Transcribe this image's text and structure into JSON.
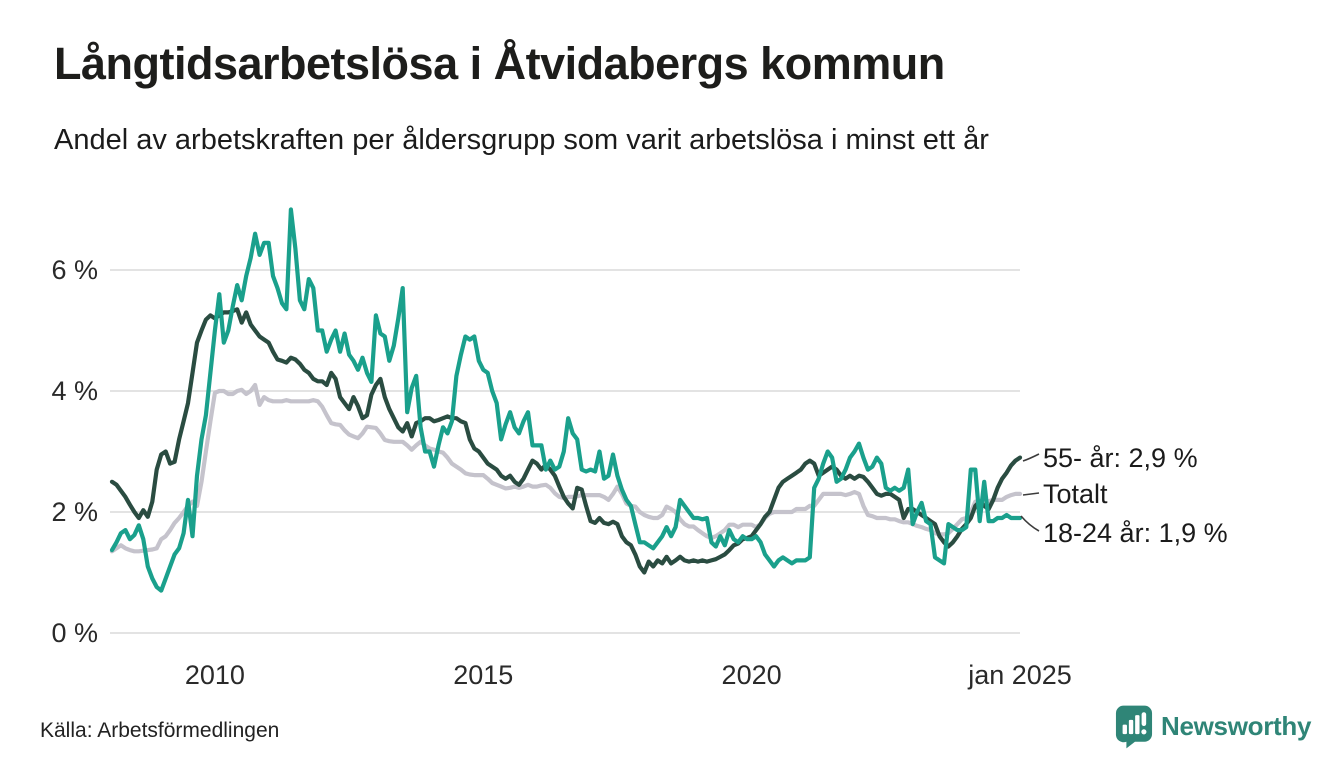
{
  "header": {
    "title": "Långtidsarbetslösa i Åtvidabergs kommun",
    "subtitle": "Andel av arbetskraften per åldersgrupp som varit arbetslösa i minst ett år"
  },
  "footer": {
    "source": "Källa: Arbetsförmedlingen",
    "logo_text": "Newsworthy",
    "logo_color": "#2F8577"
  },
  "chart_data": {
    "type": "line",
    "title": "Långtidsarbetslösa i Åtvidabergs kommun",
    "subtitle": "Andel av arbetskraften per åldersgrupp som varit arbetslösa i minst ett år",
    "unit": "% av arbetskraften",
    "frequency": "monthly",
    "x_start": "2008-02",
    "x_end": "2025-01",
    "ylim": [
      0,
      7.3
    ],
    "grid": "horizontal",
    "grid_color": "#e3e3e3",
    "y_ticks": [
      {
        "value": 0,
        "label": "0 %"
      },
      {
        "value": 2,
        "label": "2 %"
      },
      {
        "value": 4,
        "label": "4 %"
      },
      {
        "value": 6,
        "label": "6 %"
      }
    ],
    "x_ticks": [
      {
        "month_index": 23,
        "label": "2010"
      },
      {
        "month_index": 83,
        "label": "2015"
      },
      {
        "month_index": 143,
        "label": "2020"
      },
      {
        "month_index": 203,
        "label": "jan 2025"
      }
    ],
    "series": [
      {
        "name": "Totalt",
        "color": "#C5C3CC",
        "end_label": "Totalt",
        "end_value": 2.3,
        "values": [
          1.35,
          1.4,
          1.45,
          1.4,
          1.37,
          1.35,
          1.35,
          1.36,
          1.37,
          1.38,
          1.4,
          1.55,
          1.6,
          1.7,
          1.82,
          1.9,
          2.0,
          2.1,
          2.17,
          2.1,
          2.5,
          3.0,
          3.5,
          3.97,
          4.0,
          4.0,
          3.95,
          3.95,
          4.0,
          4.02,
          3.95,
          4.0,
          4.1,
          3.77,
          3.9,
          3.85,
          3.83,
          3.83,
          3.83,
          3.85,
          3.83,
          3.83,
          3.83,
          3.83,
          3.83,
          3.85,
          3.83,
          3.74,
          3.6,
          3.47,
          3.45,
          3.44,
          3.35,
          3.28,
          3.25,
          3.22,
          3.3,
          3.41,
          3.4,
          3.39,
          3.3,
          3.19,
          3.17,
          3.16,
          3.16,
          3.16,
          3.1,
          3.03,
          3.1,
          3.16,
          3.1,
          3.05,
          3.03,
          3.0,
          2.98,
          2.9,
          2.8,
          2.75,
          2.7,
          2.64,
          2.62,
          2.61,
          2.61,
          2.61,
          2.55,
          2.48,
          2.45,
          2.42,
          2.39,
          2.4,
          2.42,
          2.4,
          2.42,
          2.45,
          2.42,
          2.42,
          2.44,
          2.45,
          2.4,
          2.31,
          2.25,
          2.23,
          2.25,
          2.25,
          2.26,
          2.28,
          2.28,
          2.28,
          2.28,
          2.28,
          2.25,
          2.2,
          2.3,
          2.42,
          2.3,
          2.14,
          2.1,
          2.09,
          2.0,
          1.95,
          1.92,
          1.9,
          1.9,
          1.95,
          2.09,
          2.05,
          2.0,
          1.88,
          1.8,
          1.76,
          1.76,
          1.7,
          1.65,
          1.6,
          1.57,
          1.6,
          1.65,
          1.7,
          1.79,
          1.79,
          1.75,
          1.79,
          1.79,
          1.79,
          1.75,
          1.8,
          1.9,
          1.97,
          2.0,
          2.0,
          2.0,
          2.0,
          2.0,
          2.05,
          2.05,
          2.05,
          2.1,
          2.1,
          2.2,
          2.3,
          2.3,
          2.3,
          2.3,
          2.3,
          2.28,
          2.3,
          2.33,
          2.3,
          2.1,
          1.95,
          1.93,
          1.9,
          1.9,
          1.9,
          1.88,
          1.88,
          1.85,
          1.83,
          1.83,
          1.8,
          1.77,
          1.75,
          1.72,
          1.7,
          1.65,
          1.63,
          1.63,
          1.65,
          1.72,
          1.8,
          1.88,
          1.9,
          2.0,
          2.17,
          2.18,
          2.18,
          2.18,
          2.2,
          2.2,
          2.2,
          2.25,
          2.28,
          2.3,
          2.3
        ]
      },
      {
        "name": "55- år",
        "color": "#2A4C41",
        "end_label": "55- år: 2,9 %",
        "end_value": 2.9,
        "values": [
          2.5,
          2.45,
          2.35,
          2.25,
          2.12,
          2.0,
          1.9,
          2.03,
          1.92,
          2.17,
          2.7,
          2.95,
          3.0,
          2.8,
          2.83,
          3.2,
          3.5,
          3.8,
          4.3,
          4.8,
          5.0,
          5.18,
          5.25,
          5.2,
          5.25,
          5.3,
          5.3,
          5.32,
          5.35,
          5.13,
          5.3,
          5.1,
          5.0,
          4.9,
          4.85,
          4.8,
          4.65,
          4.52,
          4.5,
          4.47,
          4.55,
          4.52,
          4.45,
          4.35,
          4.3,
          4.2,
          4.16,
          4.16,
          4.1,
          4.3,
          4.2,
          3.9,
          3.8,
          3.7,
          3.9,
          3.75,
          3.55,
          3.6,
          3.94,
          4.1,
          4.2,
          3.9,
          3.7,
          3.55,
          3.4,
          3.33,
          3.47,
          3.25,
          3.47,
          3.5,
          3.55,
          3.55,
          3.5,
          3.52,
          3.55,
          3.58,
          3.55,
          3.55,
          3.5,
          3.47,
          3.2,
          3.05,
          3.0,
          2.9,
          2.8,
          2.75,
          2.7,
          2.6,
          2.55,
          2.6,
          2.5,
          2.45,
          2.55,
          2.7,
          2.85,
          2.8,
          2.7,
          2.78,
          2.7,
          2.6,
          2.42,
          2.25,
          2.14,
          2.06,
          2.4,
          2.37,
          2.1,
          1.85,
          1.82,
          1.9,
          1.82,
          1.8,
          1.84,
          1.8,
          1.6,
          1.5,
          1.45,
          1.3,
          1.1,
          1.0,
          1.18,
          1.1,
          1.2,
          1.15,
          1.26,
          1.15,
          1.2,
          1.26,
          1.2,
          1.18,
          1.2,
          1.18,
          1.2,
          1.18,
          1.2,
          1.22,
          1.26,
          1.3,
          1.37,
          1.45,
          1.48,
          1.55,
          1.57,
          1.6,
          1.7,
          1.8,
          1.92,
          2.0,
          2.2,
          2.4,
          2.5,
          2.55,
          2.6,
          2.65,
          2.7,
          2.8,
          2.85,
          2.8,
          2.6,
          2.65,
          2.7,
          2.75,
          2.7,
          2.6,
          2.55,
          2.6,
          2.55,
          2.6,
          2.58,
          2.5,
          2.4,
          2.3,
          2.27,
          2.3,
          2.3,
          2.25,
          2.2,
          1.9,
          2.05,
          2.05,
          2.0,
          1.95,
          1.9,
          1.85,
          1.8,
          1.6,
          1.5,
          1.43,
          1.5,
          1.6,
          1.72,
          1.8,
          1.9,
          2.1,
          2.17,
          2.1,
          2.05,
          2.2,
          2.4,
          2.55,
          2.65,
          2.77,
          2.85,
          2.9
        ]
      },
      {
        "name": "18-24 år",
        "color": "#1AA08C",
        "end_label": "18-24 år: 1,9 %",
        "end_value": 1.9,
        "values": [
          1.37,
          1.5,
          1.65,
          1.7,
          1.55,
          1.62,
          1.78,
          1.55,
          1.1,
          0.9,
          0.76,
          0.7,
          0.9,
          1.1,
          1.3,
          1.4,
          1.65,
          2.2,
          1.6,
          2.6,
          3.2,
          3.6,
          4.3,
          5.0,
          5.6,
          4.8,
          5.0,
          5.4,
          5.75,
          5.5,
          5.9,
          6.2,
          6.6,
          6.25,
          6.45,
          6.45,
          5.9,
          5.7,
          5.45,
          5.35,
          7.0,
          6.35,
          5.5,
          5.35,
          5.85,
          5.7,
          5.0,
          5.0,
          4.65,
          4.85,
          5.0,
          4.65,
          4.95,
          4.6,
          4.5,
          4.35,
          4.55,
          4.3,
          4.15,
          5.25,
          4.95,
          4.9,
          4.5,
          4.75,
          5.2,
          5.7,
          3.65,
          4.05,
          4.25,
          3.4,
          3.0,
          3.0,
          2.75,
          3.1,
          3.4,
          3.3,
          3.5,
          4.25,
          4.6,
          4.9,
          4.85,
          4.9,
          4.5,
          4.35,
          4.3,
          4.0,
          3.8,
          3.2,
          3.45,
          3.65,
          3.4,
          3.3,
          3.5,
          3.65,
          3.1,
          3.1,
          3.1,
          2.7,
          2.85,
          2.7,
          2.75,
          3.0,
          3.55,
          3.3,
          3.2,
          2.7,
          2.67,
          2.7,
          2.67,
          3.0,
          2.55,
          2.6,
          2.95,
          2.6,
          2.37,
          2.2,
          2.1,
          1.8,
          1.5,
          1.5,
          1.45,
          1.4,
          1.5,
          1.6,
          1.75,
          1.6,
          1.75,
          2.2,
          2.1,
          2.0,
          1.9,
          1.9,
          1.88,
          1.9,
          1.5,
          1.43,
          1.6,
          1.45,
          1.7,
          1.55,
          1.5,
          1.6,
          1.55,
          1.55,
          1.6,
          1.5,
          1.3,
          1.2,
          1.1,
          1.2,
          1.25,
          1.2,
          1.15,
          1.2,
          1.2,
          1.2,
          1.25,
          2.4,
          2.55,
          2.8,
          3.0,
          2.9,
          2.5,
          2.55,
          2.7,
          2.9,
          3.0,
          3.13,
          2.9,
          2.7,
          2.75,
          2.9,
          2.8,
          2.4,
          2.35,
          2.4,
          2.35,
          2.4,
          2.7,
          1.8,
          2.0,
          2.15,
          1.85,
          1.8,
          1.25,
          1.2,
          1.15,
          1.8,
          1.75,
          1.7,
          1.7,
          1.75,
          2.7,
          2.7,
          1.85,
          2.5,
          1.85,
          1.85,
          1.9,
          1.9,
          1.95,
          1.9,
          1.9,
          1.9
        ]
      }
    ],
    "legend_position": "right-end-labels"
  }
}
